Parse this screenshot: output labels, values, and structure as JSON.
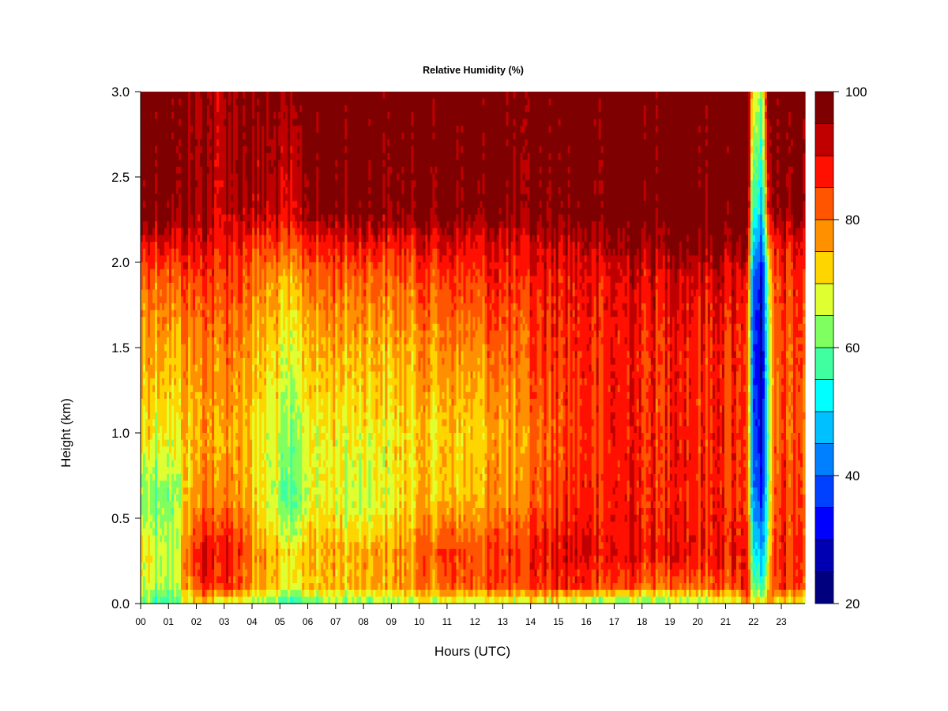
{
  "chart_data": {
    "type": "heatmap",
    "title": "Relative Humidity (%)",
    "xlabel": "Hours (UTC)",
    "ylabel": "Height (km)",
    "xlim": [
      0,
      23.85
    ],
    "ylim": [
      0,
      3.0
    ],
    "x_ticks": [
      "00",
      "01",
      "02",
      "03",
      "04",
      "05",
      "06",
      "07",
      "08",
      "09",
      "10",
      "11",
      "12",
      "13",
      "14",
      "15",
      "16",
      "17",
      "18",
      "19",
      "20",
      "21",
      "22",
      "23"
    ],
    "y_ticks": [
      "0.0",
      "0.5",
      "1.0",
      "1.5",
      "2.0",
      "2.5",
      "3.0"
    ],
    "colorbar": {
      "min": 20,
      "max": 100,
      "step": 5,
      "ticks": [
        "20",
        "40",
        "60",
        "80",
        "100"
      ],
      "colors": [
        "#00007f",
        "#0000b2",
        "#0000ff",
        "#0040ff",
        "#0080ff",
        "#00c0ff",
        "#00ffff",
        "#40ffa0",
        "#80ff60",
        "#e0ff30",
        "#ffd500",
        "#ff9000",
        "#ff5500",
        "#ff1000",
        "#c00000",
        "#7f0000"
      ]
    },
    "humidity_profiles": [
      {
        "hour": 0.0,
        "heights": [
          0,
          0.1,
          0.3,
          0.6,
          1.0,
          1.5,
          1.9,
          2.1,
          2.3,
          3.0
        ],
        "values": [
          62,
          68,
          70,
          62,
          70,
          75,
          80,
          88,
          98,
          100
        ]
      },
      {
        "hour": 0.8,
        "heights": [
          0,
          0.1,
          0.3,
          0.6,
          1.0,
          1.5,
          1.9,
          2.1,
          2.3,
          3.0
        ],
        "values": [
          54,
          62,
          64,
          60,
          68,
          74,
          80,
          88,
          98,
          100
        ]
      },
      {
        "hour": 1.2,
        "heights": [
          0,
          0.1,
          0.3,
          0.6,
          1.0,
          1.5,
          1.9,
          2.1,
          2.3,
          3.0
        ],
        "values": [
          58,
          66,
          66,
          64,
          70,
          75,
          82,
          90,
          98,
          100
        ]
      },
      {
        "hour": 2.0,
        "heights": [
          0,
          0.1,
          0.3,
          0.6,
          1.0,
          1.5,
          1.9,
          2.1,
          2.3,
          3.0
        ],
        "values": [
          70,
          85,
          88,
          78,
          75,
          78,
          84,
          90,
          95,
          96
        ]
      },
      {
        "hour": 3.0,
        "heights": [
          0,
          0.1,
          0.3,
          0.6,
          1.0,
          1.5,
          1.9,
          2.1,
          2.3,
          3.0
        ],
        "values": [
          68,
          86,
          90,
          80,
          76,
          80,
          85,
          88,
          92,
          94
        ]
      },
      {
        "hour": 4.0,
        "heights": [
          0,
          0.1,
          0.3,
          0.6,
          1.0,
          1.5,
          1.9,
          2.1,
          2.3,
          3.0
        ],
        "values": [
          64,
          78,
          80,
          74,
          72,
          76,
          80,
          86,
          94,
          99
        ]
      },
      {
        "hour": 5.4,
        "heights": [
          0,
          0.1,
          0.3,
          0.6,
          1.0,
          1.5,
          1.9,
          2.1,
          2.3,
          3.0
        ],
        "values": [
          58,
          70,
          72,
          60,
          64,
          70,
          76,
          84,
          92,
          98
        ]
      },
      {
        "hour": 6.5,
        "heights": [
          0,
          0.1,
          0.3,
          0.6,
          1.0,
          1.5,
          1.9,
          2.1,
          2.3,
          3.0
        ],
        "values": [
          62,
          74,
          76,
          70,
          70,
          76,
          82,
          88,
          98,
          100
        ]
      },
      {
        "hour": 8.0,
        "heights": [
          0,
          0.1,
          0.3,
          0.6,
          1.0,
          1.5,
          1.9,
          2.1,
          2.3,
          3.0
        ],
        "values": [
          62,
          74,
          74,
          64,
          68,
          74,
          80,
          88,
          98,
          100
        ]
      },
      {
        "hour": 9.5,
        "heights": [
          0,
          0.1,
          0.3,
          0.6,
          1.0,
          1.5,
          1.9,
          2.1,
          2.3,
          3.0
        ],
        "values": [
          64,
          76,
          78,
          72,
          72,
          76,
          82,
          88,
          98,
          100
        ]
      },
      {
        "hour": 11.0,
        "heights": [
          0,
          0.1,
          0.3,
          0.6,
          1.0,
          1.5,
          1.9,
          2.1,
          2.3,
          3.0
        ],
        "values": [
          66,
          82,
          84,
          74,
          72,
          78,
          84,
          90,
          98,
          100
        ]
      },
      {
        "hour": 12.5,
        "heights": [
          0,
          0.1,
          0.3,
          0.6,
          1.0,
          1.5,
          1.9,
          2.1,
          2.3,
          3.0
        ],
        "values": [
          66,
          82,
          84,
          76,
          74,
          80,
          86,
          90,
          98,
          100
        ]
      },
      {
        "hour": 14.0,
        "heights": [
          0,
          0.1,
          0.3,
          0.6,
          1.0,
          1.5,
          1.9,
          2.1,
          2.3,
          3.0
        ],
        "values": [
          68,
          86,
          88,
          82,
          80,
          84,
          88,
          92,
          98,
          100
        ]
      },
      {
        "hour": 15.5,
        "heights": [
          0,
          0.1,
          0.3,
          0.6,
          1.0,
          1.5,
          1.9,
          2.1,
          2.3,
          3.0
        ],
        "values": [
          64,
          86,
          90,
          86,
          84,
          86,
          88,
          92,
          98,
          100
        ]
      },
      {
        "hour": 17.0,
        "heights": [
          0,
          0.1,
          0.3,
          0.6,
          1.0,
          1.5,
          1.9,
          2.1,
          2.3,
          3.0
        ],
        "values": [
          60,
          84,
          90,
          88,
          88,
          88,
          90,
          95,
          100,
          100
        ]
      },
      {
        "hour": 18.5,
        "heights": [
          0,
          0.1,
          0.3,
          0.6,
          1.0,
          1.5,
          1.9,
          2.1,
          2.3,
          3.0
        ],
        "values": [
          60,
          80,
          88,
          86,
          86,
          86,
          90,
          96,
          100,
          100
        ]
      },
      {
        "hour": 20.0,
        "heights": [
          0,
          0.1,
          0.3,
          0.6,
          1.0,
          1.5,
          1.9,
          2.1,
          2.3,
          3.0
        ],
        "values": [
          62,
          80,
          88,
          86,
          86,
          86,
          90,
          96,
          100,
          100
        ]
      },
      {
        "hour": 21.5,
        "heights": [
          0,
          0.1,
          0.3,
          0.6,
          1.0,
          1.5,
          1.9,
          2.1,
          2.3,
          3.0
        ],
        "values": [
          66,
          84,
          88,
          86,
          86,
          86,
          90,
          96,
          100,
          100
        ]
      },
      {
        "hour": 21.8,
        "heights": [
          0,
          0.1,
          0.3,
          0.6,
          1.0,
          1.5,
          1.9,
          2.1,
          2.3,
          3.0
        ],
        "values": [
          80,
          86,
          86,
          80,
          80,
          80,
          84,
          92,
          98,
          100
        ]
      },
      {
        "hour": 22.0,
        "heights": [
          0,
          0.1,
          0.3,
          0.6,
          1.0,
          1.5,
          1.9,
          2.1,
          2.3,
          3.0
        ],
        "values": [
          70,
          56,
          48,
          40,
          34,
          32,
          36,
          44,
          52,
          66
        ]
      },
      {
        "hour": 22.3,
        "heights": [
          0,
          0.1,
          0.3,
          0.6,
          1.0,
          1.5,
          1.9,
          2.1,
          2.3,
          3.0
        ],
        "values": [
          70,
          58,
          46,
          36,
          30,
          28,
          30,
          40,
          50,
          64
        ]
      },
      {
        "hour": 22.5,
        "heights": [
          0,
          0.1,
          0.3,
          0.6,
          1.0,
          1.5,
          1.9,
          2.1,
          2.3,
          3.0
        ],
        "values": [
          80,
          76,
          68,
          62,
          60,
          62,
          66,
          76,
          90,
          100
        ]
      },
      {
        "hour": 22.8,
        "heights": [
          0,
          0.1,
          0.3,
          0.6,
          1.0,
          1.5,
          1.9,
          2.1,
          2.3,
          3.0
        ],
        "values": [
          72,
          86,
          88,
          86,
          84,
          84,
          86,
          90,
          98,
          100
        ]
      },
      {
        "hour": 23.85,
        "heights": [
          0,
          0.1,
          0.3,
          0.6,
          1.0,
          1.5,
          1.9,
          2.1,
          2.3,
          3.0
        ],
        "values": [
          70,
          84,
          86,
          84,
          82,
          84,
          86,
          90,
          98,
          100
        ]
      }
    ]
  }
}
